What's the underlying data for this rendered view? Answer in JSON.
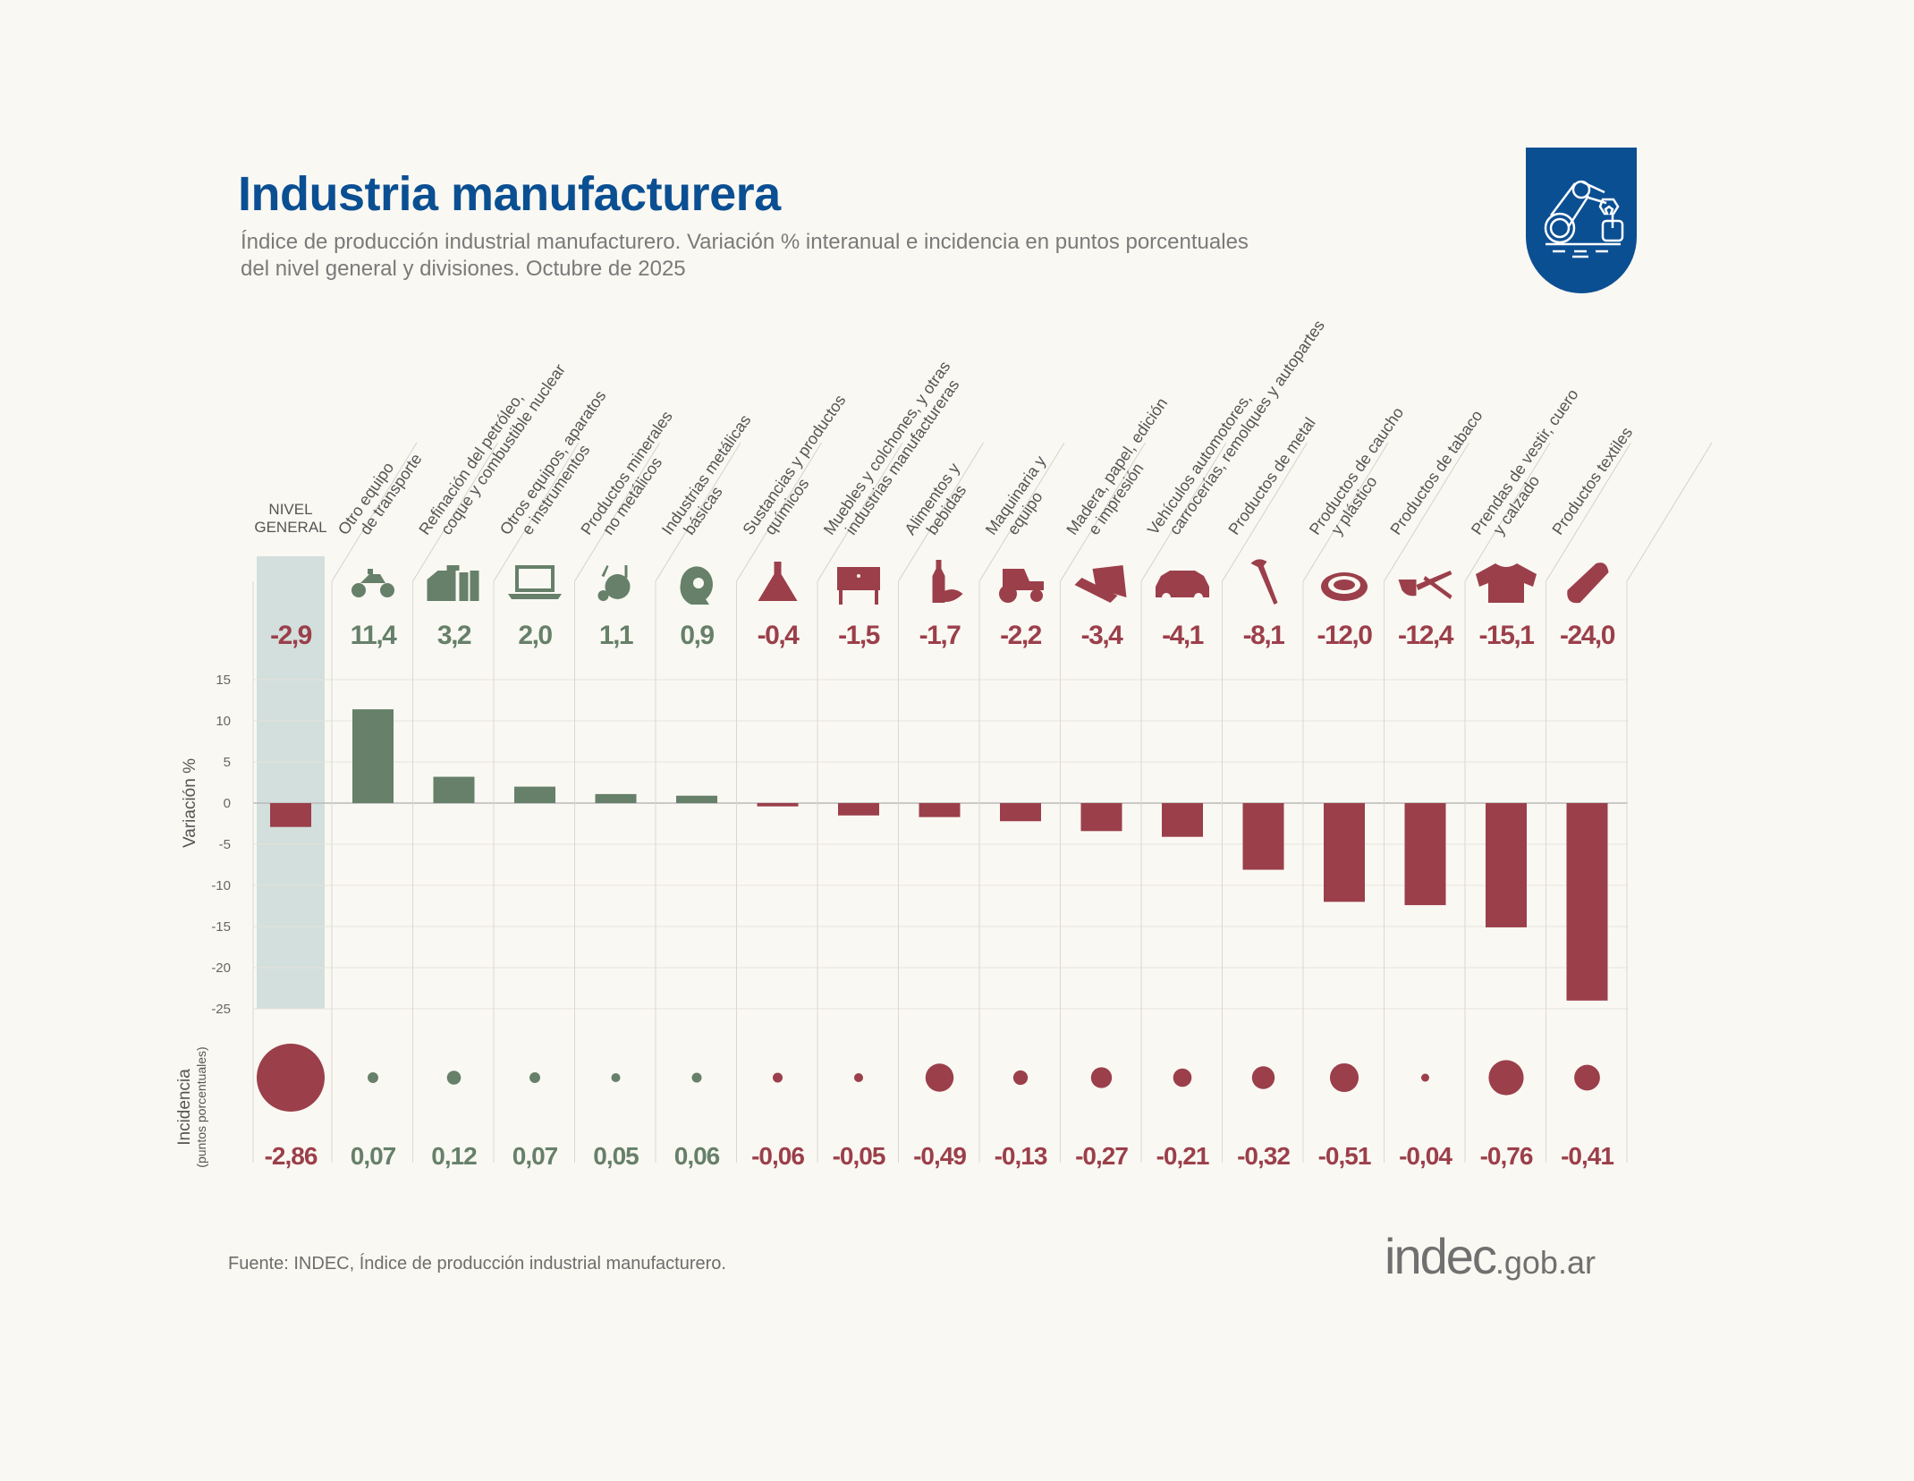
{
  "header": {
    "title": "Industria manufacturera",
    "subtitle_line1": "Índice de producción industrial manufacturero. Variación % interanual e incidencia en puntos porcentuales",
    "subtitle_line2": "del nivel general y divisiones. Octubre de 2025",
    "badge_icon": "robotic-arm-icon"
  },
  "footer": {
    "source": "Fuente: INDEC, Índice de producción industrial manufacturero.",
    "logo_main": "indec",
    "logo_domain": ".gob.ar"
  },
  "colors": {
    "positive": "#66806a",
    "negative": "#9b3f4b",
    "brand": "#0b4f93",
    "highlight": "#d3dfdc"
  },
  "chart_data": {
    "type": "bar",
    "ylabel": "Variación %",
    "ylim": [
      -25,
      15
    ],
    "yticks": [
      15,
      10,
      5,
      0,
      -5,
      -10,
      -15,
      -20,
      -25
    ],
    "grid": true,
    "bubble_label": "Incidencia",
    "bubble_sublabel": "(puntos porcentuales)",
    "categories": [
      {
        "label": [
          "NIVEL",
          "GENERAL"
        ],
        "variation": -2.9,
        "variation_label": "-2,9",
        "incidence": -2.86,
        "incidence_label": "-2,86",
        "icon": "none",
        "highlight": true
      },
      {
        "label": [
          "Otro equipo",
          "de transporte"
        ],
        "variation": 11.4,
        "variation_label": "11,4",
        "incidence": 0.07,
        "incidence_label": "0,07",
        "icon": "motorcycle-icon"
      },
      {
        "label": [
          "Refinación del petróleo,",
          "coque y combustible nuclear"
        ],
        "variation": 3.2,
        "variation_label": "3,2",
        "incidence": 0.12,
        "incidence_label": "0,12",
        "icon": "refinery-icon"
      },
      {
        "label": [
          "Otros equipos, aparatos",
          "e instrumentos"
        ],
        "variation": 2.0,
        "variation_label": "2,0",
        "incidence": 0.07,
        "incidence_label": "0,07",
        "icon": "laptop-icon"
      },
      {
        "label": [
          "Productos minerales",
          "no metálicos"
        ],
        "variation": 1.1,
        "variation_label": "1,1",
        "incidence": 0.05,
        "incidence_label": "0,05",
        "icon": "cement-mixer-icon"
      },
      {
        "label": [
          "Industrias metálicas",
          "básicas"
        ],
        "variation": 0.9,
        "variation_label": "0,9",
        "incidence": 0.06,
        "incidence_label": "0,06",
        "icon": "metal-coil-icon"
      },
      {
        "label": [
          "Sustancias y productos",
          "químicos"
        ],
        "variation": -0.4,
        "variation_label": "-0,4",
        "incidence": -0.06,
        "incidence_label": "-0,06",
        "icon": "flask-icon"
      },
      {
        "label": [
          "Muebles y colchones, y otras",
          "industrias manufactureras"
        ],
        "variation": -1.5,
        "variation_label": "-1,5",
        "incidence": -0.05,
        "incidence_label": "-0,05",
        "icon": "furniture-icon"
      },
      {
        "label": [
          "Alimentos y",
          "bebidas"
        ],
        "variation": -1.7,
        "variation_label": "-1,7",
        "incidence": -0.49,
        "incidence_label": "-0,49",
        "icon": "bottle-bread-icon"
      },
      {
        "label": [
          "Maquinaria y",
          "equipo"
        ],
        "variation": -2.2,
        "variation_label": "-2,2",
        "incidence": -0.13,
        "incidence_label": "-0,13",
        "icon": "tractor-icon"
      },
      {
        "label": [
          "Madera, papel, edición",
          "e impresión"
        ],
        "variation": -3.4,
        "variation_label": "-3,4",
        "incidence": -0.27,
        "incidence_label": "-0,27",
        "icon": "wood-paper-icon"
      },
      {
        "label": [
          "Vehículos automotores,",
          "carrocerías, remolques y autopartes"
        ],
        "variation": -4.1,
        "variation_label": "-4,1",
        "incidence": -0.21,
        "incidence_label": "-0,21",
        "icon": "car-icon"
      },
      {
        "label": [
          "Productos de metal",
          ""
        ],
        "variation": -8.1,
        "variation_label": "-8,1",
        "incidence": -0.32,
        "incidence_label": "-0,32",
        "icon": "nail-icon"
      },
      {
        "label": [
          "Productos de caucho",
          "y plástico"
        ],
        "variation": -12.0,
        "variation_label": "-12,0",
        "incidence": -0.51,
        "incidence_label": "-0,51",
        "icon": "tire-icon"
      },
      {
        "label": [
          "Productos de tabaco",
          ""
        ],
        "variation": -12.4,
        "variation_label": "-12,4",
        "incidence": -0.04,
        "incidence_label": "-0,04",
        "icon": "pipe-icon"
      },
      {
        "label": [
          "Prendas de vestir, cuero",
          "y calzado"
        ],
        "variation": -15.1,
        "variation_label": "-15,1",
        "incidence": -0.76,
        "incidence_label": "-0,76",
        "icon": "sweater-icon"
      },
      {
        "label": [
          "Productos textiles",
          ""
        ],
        "variation": -24.0,
        "variation_label": "-24,0",
        "incidence": -0.41,
        "incidence_label": "-0,41",
        "icon": "thread-spool-icon"
      }
    ]
  }
}
